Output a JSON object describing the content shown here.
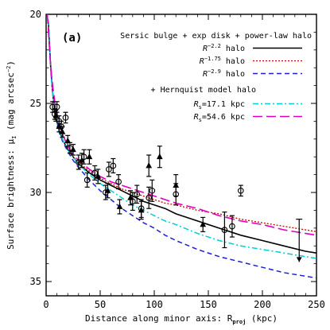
{
  "chart_data": {
    "type": "scatter",
    "panel_label": "(a)",
    "xlabel": "Distance along minor axis: R",
    "xlabel_sub": "proj",
    "xlabel_unit": " (kpc)",
    "ylabel": "Surface brightness: μ",
    "ylabel_sub": "I",
    "ylabel_unit": " (mag arcsec",
    "ylabel_sup": "−2",
    "ylabel_close": ")",
    "xlim": [
      0,
      250
    ],
    "ylim": [
      35.8,
      20
    ],
    "y_inverted": true,
    "xticks": [
      0,
      50,
      100,
      150,
      200,
      250
    ],
    "yticks": [
      20,
      25,
      30,
      35
    ],
    "legend_header": "Sersic bulge + exp disk + power-law halo",
    "legend_header2": "+ Hernquist model halo",
    "series": [
      {
        "name": "R^-2.2 halo",
        "base": "R",
        "exp": "−2.2",
        "suffix": " halo",
        "color": "#000000",
        "dash": "",
        "width": 1.6,
        "x": [
          2,
          3,
          4,
          5,
          6,
          8,
          10,
          12,
          15,
          20,
          25,
          30,
          40,
          50,
          60,
          70,
          80,
          90,
          100,
          110,
          120,
          140,
          160,
          180,
          200,
          220,
          240,
          250
        ],
        "y": [
          20.3,
          21.6,
          22.7,
          23.6,
          24.4,
          25.4,
          26.0,
          26.5,
          27.0,
          27.6,
          28.0,
          28.4,
          28.9,
          29.3,
          29.6,
          29.9,
          30.2,
          30.5,
          30.7,
          30.9,
          31.2,
          31.6,
          32.0,
          32.4,
          32.7,
          33.0,
          33.3,
          33.4
        ]
      },
      {
        "name": "R^-1.75 halo",
        "base": "R",
        "exp": "−1.75",
        "suffix": " halo",
        "color": "#cc0000",
        "dash": "2,2",
        "width": 1.3,
        "x": [
          2,
          3,
          4,
          5,
          6,
          8,
          10,
          12,
          15,
          20,
          25,
          30,
          40,
          50,
          60,
          70,
          80,
          90,
          100,
          110,
          120,
          140,
          160,
          180,
          200,
          220,
          240,
          250
        ],
        "y": [
          20.3,
          21.6,
          22.7,
          23.6,
          24.4,
          25.4,
          26.0,
          26.5,
          27.0,
          27.6,
          28.0,
          28.3,
          28.8,
          29.2,
          29.5,
          29.8,
          30.0,
          30.2,
          30.4,
          30.6,
          30.7,
          31.0,
          31.2,
          31.5,
          31.7,
          31.9,
          32.1,
          32.2
        ]
      },
      {
        "name": "R^-2.9 halo",
        "base": "R",
        "exp": "−2.9",
        "suffix": " halo",
        "color": "#1f1fd6",
        "dash": "6,4",
        "width": 1.5,
        "x": [
          2,
          3,
          4,
          5,
          6,
          8,
          10,
          12,
          15,
          20,
          25,
          30,
          40,
          50,
          60,
          70,
          80,
          90,
          100,
          110,
          120,
          140,
          160,
          180,
          200,
          220,
          240,
          250
        ],
        "y": [
          20.3,
          21.6,
          22.7,
          23.6,
          24.4,
          25.4,
          26.0,
          26.6,
          27.1,
          27.7,
          28.2,
          28.6,
          29.3,
          29.9,
          30.4,
          30.9,
          31.3,
          31.7,
          32.0,
          32.4,
          32.7,
          33.2,
          33.6,
          33.9,
          34.2,
          34.5,
          34.7,
          34.8
        ]
      },
      {
        "name": "R_s=17.1 kpc",
        "base": "R",
        "sub": "s",
        "suffix": "=17.1 kpc",
        "color": "#00d0d0",
        "dash": "7,3,2,3",
        "width": 1.5,
        "x": [
          2,
          3,
          4,
          5,
          6,
          8,
          10,
          12,
          15,
          20,
          25,
          30,
          40,
          50,
          60,
          70,
          80,
          90,
          100,
          110,
          120,
          140,
          160,
          180,
          200,
          220,
          240,
          250
        ],
        "y": [
          20.3,
          21.6,
          22.7,
          23.6,
          24.4,
          25.4,
          26.0,
          26.5,
          27.0,
          27.6,
          28.0,
          28.4,
          29.0,
          29.5,
          29.9,
          30.3,
          30.7,
          31.0,
          31.3,
          31.6,
          31.8,
          32.3,
          32.7,
          33.0,
          33.2,
          33.4,
          33.6,
          33.7
        ]
      },
      {
        "name": "R_s=54.6 kpc",
        "base": "R",
        "sub": "s",
        "suffix": "=54.6 kpc",
        "color": "#e000c0",
        "dash": "12,5",
        "width": 1.6,
        "x": [
          1,
          2,
          3,
          4,
          5,
          6,
          8,
          10,
          12,
          15,
          20,
          25,
          30,
          40,
          50,
          60,
          70,
          80,
          90,
          100,
          110,
          120,
          140,
          160,
          180,
          200,
          220,
          240,
          250
        ],
        "y": [
          20.0,
          20.8,
          21.8,
          22.7,
          23.4,
          24.0,
          24.9,
          25.6,
          26.1,
          26.7,
          27.4,
          27.9,
          28.2,
          28.7,
          29.1,
          29.4,
          29.6,
          29.8,
          30.0,
          30.2,
          30.4,
          30.6,
          30.9,
          31.3,
          31.6,
          31.8,
          32.1,
          32.3,
          32.4
        ]
      }
    ],
    "observations": {
      "circles": [
        {
          "x": 6,
          "y": 25.2,
          "err": 0.3
        },
        {
          "x": 8,
          "y": 25.6,
          "err": 0.3
        },
        {
          "x": 10,
          "y": 25.2,
          "err": 0.3
        },
        {
          "x": 12,
          "y": 26.0,
          "err": 0.3
        },
        {
          "x": 14,
          "y": 26.3,
          "err": 0.3
        },
        {
          "x": 18,
          "y": 25.8,
          "err": 0.3
        },
        {
          "x": 22,
          "y": 27.5,
          "err": 0.3
        },
        {
          "x": 30,
          "y": 28.3,
          "err": 0.4
        },
        {
          "x": 35,
          "y": 28.0,
          "err": 0.4
        },
        {
          "x": 38,
          "y": 29.3,
          "err": 0.4
        },
        {
          "x": 45,
          "y": 28.9,
          "err": 0.4
        },
        {
          "x": 55,
          "y": 30.0,
          "err": 0.4
        },
        {
          "x": 58,
          "y": 28.7,
          "err": 0.4
        },
        {
          "x": 62,
          "y": 28.5,
          "err": 0.4
        },
        {
          "x": 67,
          "y": 29.4,
          "err": 0.4
        },
        {
          "x": 80,
          "y": 30.5,
          "err": 0.5
        },
        {
          "x": 84,
          "y": 30.1,
          "err": 0.5
        },
        {
          "x": 88,
          "y": 30.9,
          "err": 0.5
        },
        {
          "x": 95,
          "y": 30.3,
          "err": 0.6
        },
        {
          "x": 98,
          "y": 29.9,
          "err": 0.6
        },
        {
          "x": 120,
          "y": 30.1,
          "err": 0.6
        },
        {
          "x": 165,
          "y": 32.1,
          "err": 1.0
        },
        {
          "x": 172,
          "y": 31.9,
          "err": 0.6
        },
        {
          "x": 180,
          "y": 29.9,
          "err": 0.3
        }
      ],
      "triangles": [
        {
          "x": 9,
          "y": 25.7,
          "err": 0.3
        },
        {
          "x": 12,
          "y": 26.3,
          "err": 0.3
        },
        {
          "x": 15,
          "y": 26.6,
          "err": 0.3
        },
        {
          "x": 20,
          "y": 27.1,
          "err": 0.3
        },
        {
          "x": 25,
          "y": 27.6,
          "err": 0.3
        },
        {
          "x": 33,
          "y": 28.2,
          "err": 0.4
        },
        {
          "x": 40,
          "y": 28.0,
          "err": 0.4
        },
        {
          "x": 48,
          "y": 29.1,
          "err": 0.4
        },
        {
          "x": 57,
          "y": 29.9,
          "err": 0.4
        },
        {
          "x": 68,
          "y": 30.8,
          "err": 0.4
        },
        {
          "x": 78,
          "y": 30.3,
          "err": 0.4
        },
        {
          "x": 88,
          "y": 31.0,
          "err": 0.5
        },
        {
          "x": 95,
          "y": 28.5,
          "err": 0.6
        },
        {
          "x": 105,
          "y": 28.0,
          "err": 0.6
        },
        {
          "x": 120,
          "y": 29.6,
          "err": 0.6
        },
        {
          "x": 145,
          "y": 31.8,
          "err": 0.4
        }
      ],
      "upper_limit": {
        "x": 234,
        "y": 31.5,
        "to": 33.9
      }
    }
  }
}
